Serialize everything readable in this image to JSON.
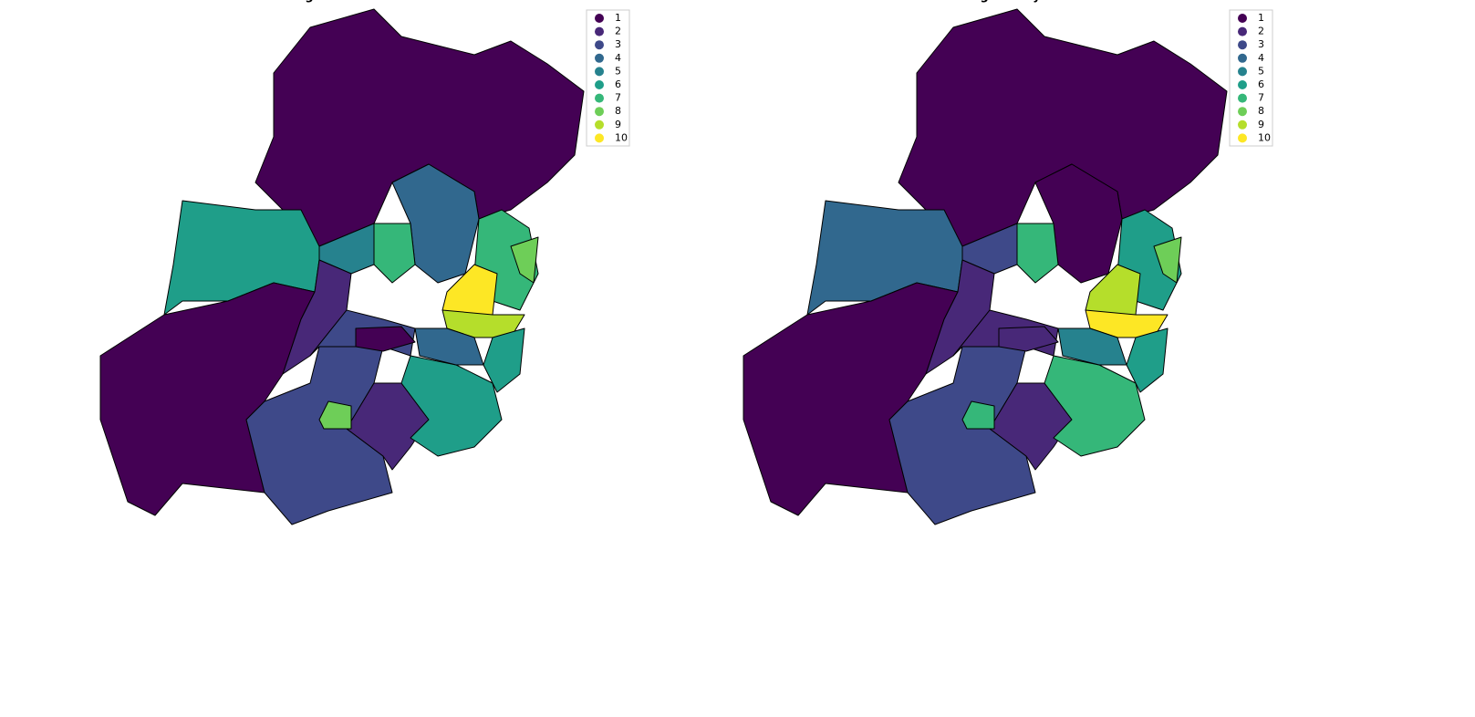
{
  "maps": [
    {
      "title": "Ranking: Accommodation Index",
      "legend": [
        {
          "label": 1,
          "color": "#440154"
        },
        {
          "label": 2,
          "color": "#482878"
        },
        {
          "label": 3,
          "color": "#3e4989"
        },
        {
          "label": 4,
          "color": "#31688e"
        },
        {
          "label": 5,
          "color": "#26828e"
        },
        {
          "label": 6,
          "color": "#1f9e89"
        },
        {
          "label": 7,
          "color": "#35b779"
        },
        {
          "label": 8,
          "color": "#6ece58"
        },
        {
          "label": 9,
          "color": "#b5de2b"
        },
        {
          "label": 10,
          "color": "#fde725"
        }
      ],
      "region_ranks": [
        1,
        6,
        1,
        3,
        2,
        8,
        4,
        5,
        7,
        2,
        3,
        1,
        6,
        7,
        10,
        9,
        4,
        6,
        8
      ]
    },
    {
      "title": "Ranking: Safety Index",
      "legend": [
        {
          "label": 1,
          "color": "#440154"
        },
        {
          "label": 2,
          "color": "#482878"
        },
        {
          "label": 3,
          "color": "#3e4989"
        },
        {
          "label": 4,
          "color": "#31688e"
        },
        {
          "label": 5,
          "color": "#26828e"
        },
        {
          "label": 6,
          "color": "#1f9e89"
        },
        {
          "label": 7,
          "color": "#35b779"
        },
        {
          "label": 8,
          "color": "#6ece58"
        },
        {
          "label": 9,
          "color": "#b5de2b"
        },
        {
          "label": 10,
          "color": "#fde725"
        }
      ],
      "region_ranks": [
        1,
        4,
        1,
        3,
        2,
        7,
        1,
        3,
        7,
        2,
        2,
        2,
        7,
        6,
        9,
        10,
        5,
        6,
        8
      ]
    }
  ]
}
